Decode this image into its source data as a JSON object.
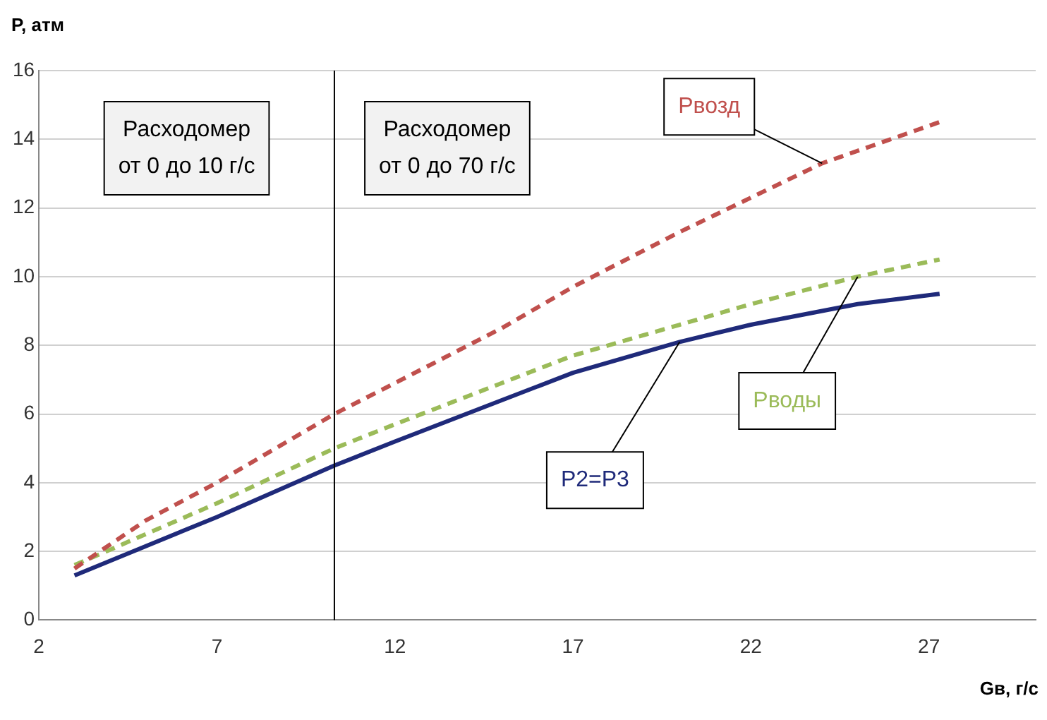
{
  "chart_data": {
    "type": "line",
    "xlabel": "Gв, г/с",
    "ylabel": "P, атм",
    "xlim": [
      2,
      30
    ],
    "xticks": [
      2,
      7,
      12,
      17,
      22,
      27
    ],
    "ylim": [
      0,
      16
    ],
    "yticks": [
      0,
      2,
      4,
      6,
      8,
      10,
      12,
      14,
      16
    ],
    "grid": "y",
    "legend": false,
    "marker": "none",
    "series": [
      {
        "name": "Pвозд",
        "color": "#c0504d",
        "line_style": "dashed",
        "x": [
          3,
          5,
          7,
          10.3,
          12,
          15,
          17,
          20,
          22,
          24,
          27.3
        ],
        "values": [
          1.5,
          2.9,
          4.0,
          6.0,
          6.9,
          8.5,
          9.7,
          11.3,
          12.3,
          13.3,
          14.5
        ]
      },
      {
        "name": "Pводы",
        "color": "#9bbb59",
        "line_style": "dashed",
        "x": [
          3,
          7,
          10.3,
          12,
          15,
          17,
          20,
          22,
          25,
          27.3
        ],
        "values": [
          1.6,
          3.4,
          5.0,
          5.7,
          6.9,
          7.7,
          8.6,
          9.2,
          10.0,
          10.5
        ]
      },
      {
        "name": "P2=P3",
        "color": "#1f2a7a",
        "line_style": "solid",
        "x": [
          3,
          7,
          10.3,
          12,
          15,
          17,
          20,
          22,
          25,
          27.3
        ],
        "values": [
          1.3,
          3.0,
          4.5,
          5.2,
          6.4,
          7.2,
          8.1,
          8.6,
          9.2,
          9.5
        ]
      }
    ],
    "ref_lines": [
      {
        "axis": "x",
        "value": 10.3,
        "color": "#000000"
      }
    ],
    "annotations": [
      "Расходомер от 0 до 10 г/с",
      "Расходомер от 0 до 70 г/с"
    ]
  }
}
